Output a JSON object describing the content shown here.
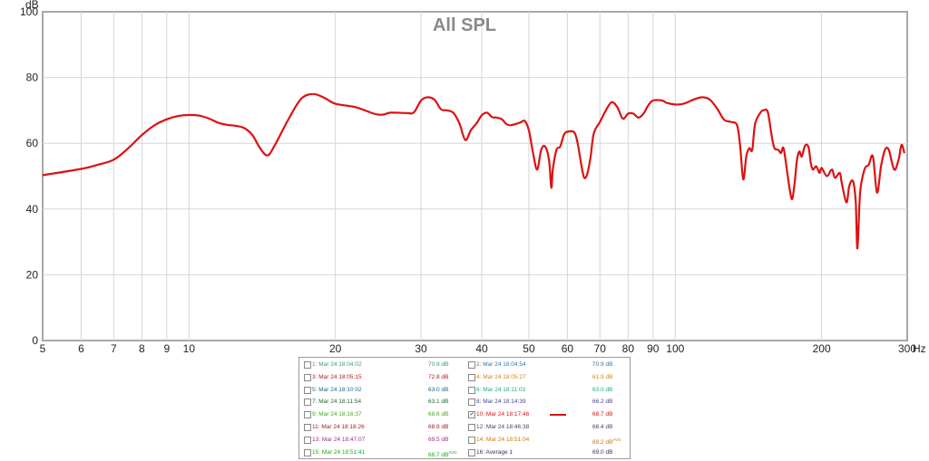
{
  "chart_data": {
    "type": "line",
    "title": "All SPL",
    "ylabel": "dB",
    "xunit": "Hz",
    "xscale": "log",
    "xlim": [
      5,
      300
    ],
    "ylim": [
      0,
      100
    ],
    "x_ticks": [
      5,
      6,
      7,
      8,
      9,
      10,
      20,
      30,
      40,
      50,
      60,
      70,
      80,
      90,
      100,
      200,
      300
    ],
    "x_tick_labels": [
      "5",
      "6",
      "7",
      "8",
      "9",
      "10",
      "20",
      "30",
      "40",
      "50",
      "60",
      "70",
      "80",
      "90",
      "100",
      "200",
      "300"
    ],
    "y_ticks": [
      0,
      20,
      40,
      60,
      80,
      100
    ],
    "grid": true,
    "series": [
      {
        "name": "10: Mar 24 18:17:46",
        "color": "#dd1111",
        "points": [
          [
            5,
            50.3
          ],
          [
            6,
            52.2
          ],
          [
            6.5,
            53.5
          ],
          [
            7,
            55
          ],
          [
            7.5,
            58.5
          ],
          [
            8,
            62.5
          ],
          [
            8.5,
            65.5
          ],
          [
            9,
            67.3
          ],
          [
            9.5,
            68.3
          ],
          [
            10,
            68.6
          ],
          [
            10.5,
            68.4
          ],
          [
            11,
            67.5
          ],
          [
            11.5,
            66.2
          ],
          [
            12,
            65.6
          ],
          [
            12.5,
            65.3
          ],
          [
            13,
            64.6
          ],
          [
            13.5,
            62.5
          ],
          [
            14,
            58.5
          ],
          [
            14.5,
            56.3
          ],
          [
            15,
            59.3
          ],
          [
            16,
            67.2
          ],
          [
            17,
            73.5
          ],
          [
            18,
            75
          ],
          [
            19,
            73.8
          ],
          [
            20,
            72
          ],
          [
            22,
            71
          ],
          [
            24,
            69
          ],
          [
            25,
            68.7
          ],
          [
            26,
            69.3
          ],
          [
            28,
            69.2
          ],
          [
            29,
            69.4
          ],
          [
            30,
            73
          ],
          [
            31,
            74
          ],
          [
            32,
            73.2
          ],
          [
            33,
            70.3
          ],
          [
            34,
            70
          ],
          [
            35,
            69.2
          ],
          [
            36,
            66
          ],
          [
            37,
            61
          ],
          [
            38,
            64
          ],
          [
            39,
            66
          ],
          [
            40,
            68.5
          ],
          [
            41,
            69.3
          ],
          [
            42,
            68
          ],
          [
            43,
            67.8
          ],
          [
            44,
            67.3
          ],
          [
            45,
            65.8
          ],
          [
            46,
            65.5
          ],
          [
            48,
            66.3
          ],
          [
            49,
            66.8
          ],
          [
            50,
            64
          ],
          [
            51,
            57
          ],
          [
            52,
            52
          ],
          [
            53,
            58
          ],
          [
            54,
            59
          ],
          [
            55,
            55
          ],
          [
            55.6,
            46.5
          ],
          [
            56,
            52
          ],
          [
            57,
            58
          ],
          [
            58,
            59
          ],
          [
            59,
            62.5
          ],
          [
            60,
            63.5
          ],
          [
            62,
            63.3
          ],
          [
            63,
            60
          ],
          [
            64,
            54
          ],
          [
            65,
            49.5
          ],
          [
            66,
            51
          ],
          [
            67,
            56
          ],
          [
            68,
            63
          ],
          [
            70,
            66.5
          ],
          [
            72,
            70
          ],
          [
            74,
            72.5
          ],
          [
            76,
            71
          ],
          [
            78,
            67.5
          ],
          [
            80,
            69
          ],
          [
            82,
            69
          ],
          [
            84,
            67.8
          ],
          [
            86,
            69
          ],
          [
            88,
            71.5
          ],
          [
            90,
            73
          ],
          [
            94,
            73
          ],
          [
            96,
            72.3
          ],
          [
            100,
            71.8
          ],
          [
            104,
            72
          ],
          [
            110,
            73.5
          ],
          [
            114,
            74
          ],
          [
            118,
            73.2
          ],
          [
            122,
            70.5
          ],
          [
            126,
            67.2
          ],
          [
            130,
            66.5
          ],
          [
            134,
            65.5
          ],
          [
            136,
            59
          ],
          [
            138,
            49
          ],
          [
            140,
            56
          ],
          [
            142,
            58.5
          ],
          [
            144,
            58
          ],
          [
            146,
            66
          ],
          [
            150,
            69.5
          ],
          [
            152,
            70
          ],
          [
            155,
            69.5
          ],
          [
            158,
            62
          ],
          [
            160,
            58.5
          ],
          [
            163,
            58
          ],
          [
            165,
            57
          ],
          [
            167,
            58.5
          ],
          [
            170,
            51
          ],
          [
            172,
            46
          ],
          [
            174,
            43
          ],
          [
            176,
            48
          ],
          [
            178,
            55
          ],
          [
            180,
            57.5
          ],
          [
            182,
            56
          ],
          [
            185,
            59.3
          ],
          [
            188,
            58.8
          ],
          [
            190,
            54
          ],
          [
            192,
            52
          ],
          [
            195,
            53
          ],
          [
            198,
            51
          ],
          [
            200,
            52.5
          ],
          [
            205,
            50
          ],
          [
            210,
            52
          ],
          [
            213,
            49.5
          ],
          [
            218,
            51
          ],
          [
            220,
            48
          ],
          [
            225,
            42
          ],
          [
            228,
            47
          ],
          [
            232,
            48.5
          ],
          [
            235,
            42.5
          ],
          [
            237,
            28
          ],
          [
            240,
            45
          ],
          [
            245,
            52
          ],
          [
            250,
            53.5
          ],
          [
            255,
            56
          ],
          [
            260,
            45
          ],
          [
            265,
            53
          ],
          [
            270,
            58
          ],
          [
            275,
            58
          ],
          [
            282,
            52
          ],
          [
            288,
            55
          ],
          [
            292,
            59.5
          ],
          [
            296,
            57
          ]
        ]
      }
    ]
  },
  "legend": {
    "entries": [
      {
        "label": "1: Mar 24 18:04:02",
        "value": "70.9 dB",
        "avg": "",
        "color": "#33a070",
        "checked": false
      },
      {
        "label": "2: Mar 24 18:04:54",
        "value": "70.9 dB",
        "avg": "",
        "color": "#3377aa",
        "checked": false
      },
      {
        "label": "3: Mar 24 18:05:15",
        "value": "72.8 dB",
        "avg": "",
        "color": "#aa2222",
        "checked": false
      },
      {
        "label": "4: Mar 24 18:05:27",
        "value": "61.9 dB",
        "avg": "",
        "color": "#cc8822",
        "checked": false
      },
      {
        "label": "5: Mar 24 18:10:02",
        "value": "63.0 dB",
        "avg": "",
        "color": "#226688",
        "checked": false
      },
      {
        "label": "6: Mar 24 18:11:03",
        "value": "63.0 dB",
        "avg": "",
        "color": "#22aa88",
        "checked": false
      },
      {
        "label": "7: Mar 24 18:11:54",
        "value": "63.1 dB",
        "avg": "",
        "color": "#226633",
        "checked": false
      },
      {
        "label": "8: Mar 24 18:14:39",
        "value": "66.2 dB",
        "avg": "",
        "color": "#444499",
        "checked": false
      },
      {
        "label": "9: Mar 24 18:16:37",
        "value": "68.6 dB",
        "avg": "",
        "color": "#44aa22",
        "checked": false
      },
      {
        "label": "10: Mar 24 18:17:46",
        "value": "68.7 dB",
        "avg": "",
        "color": "#dd1111",
        "checked": true
      },
      {
        "label": "11: Mar 24 18:18:26",
        "value": "68.9 dB",
        "avg": "",
        "color": "#992222",
        "checked": false
      },
      {
        "label": "12: Mar 24 18:46:38",
        "value": "68.4 dB",
        "avg": "",
        "color": "#444477",
        "checked": false
      },
      {
        "label": "13: Mar 24 18:47:07",
        "value": "69.5 dB",
        "avg": "",
        "color": "#993388",
        "checked": false
      },
      {
        "label": "14: Mar 24 18:51:04",
        "value": "69.2 dB",
        "avg": "AVG",
        "color": "#cc7711",
        "checked": false
      },
      {
        "label": "15: Mar 24 18:51:41",
        "value": "68.7 dB",
        "avg": "AVG",
        "color": "#22aa22",
        "checked": false
      },
      {
        "label": "16: Average 1",
        "value": "69.0 dB",
        "avg": "",
        "color": "#333366",
        "checked": false
      }
    ],
    "check_glyph": "✓"
  }
}
